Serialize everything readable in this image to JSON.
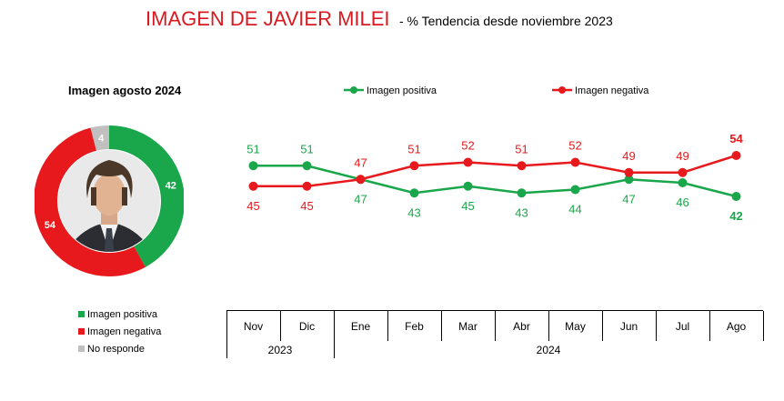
{
  "title": {
    "main": "IMAGEN DE JAVIER MILEI",
    "sub": "- % Tendencia desde noviembre 2023"
  },
  "colors": {
    "positive": "#1aa64a",
    "negative": "#e8191c",
    "no_response": "#c0c0c0",
    "title": "#d9191f"
  },
  "donut": {
    "title": "Imagen agosto 2024",
    "center_image": "photo of Javier Milei",
    "slices": [
      {
        "label": "Imagen positiva",
        "value": 42,
        "color": "#1aa64a"
      },
      {
        "label": "Imagen negativa",
        "value": 54,
        "color": "#e8191c"
      },
      {
        "label": "No responde",
        "value": 4,
        "color": "#c0c0c0"
      }
    ],
    "legend": [
      {
        "label": "Imagen positiva",
        "color": "#1aa64a"
      },
      {
        "label": "Imagen negativa",
        "color": "#e8191c"
      },
      {
        "label": "No responde",
        "color": "#c0c0c0"
      }
    ]
  },
  "chart_data": [
    {
      "type": "pie",
      "title": "Imagen agosto 2024",
      "categories": [
        "Imagen positiva",
        "Imagen negativa",
        "No responde"
      ],
      "values": [
        42,
        54,
        4
      ]
    },
    {
      "type": "line",
      "title": "",
      "categories": [
        "Nov",
        "Dic",
        "Ene",
        "Feb",
        "Mar",
        "Abr",
        "May",
        "Jun",
        "Jul",
        "Ago"
      ],
      "year_groups": [
        {
          "label": "2023",
          "months": [
            "Nov",
            "Dic"
          ]
        },
        {
          "label": "2024",
          "months": [
            "Ene",
            "Feb",
            "Mar",
            "Abr",
            "May",
            "Jun",
            "Jul",
            "Ago"
          ]
        }
      ],
      "series": [
        {
          "name": "Imagen positiva",
          "values": [
            51,
            51,
            47,
            43,
            45,
            43,
            44,
            47,
            46,
            42
          ],
          "color": "#1aa64a"
        },
        {
          "name": "Imagen negativa",
          "values": [
            45,
            45,
            47,
            51,
            52,
            51,
            52,
            49,
            49,
            54
          ],
          "color": "#e8191c"
        }
      ],
      "ylim": [
        40,
        55
      ],
      "grid": false,
      "legend": "top",
      "highlight_last": true
    }
  ]
}
